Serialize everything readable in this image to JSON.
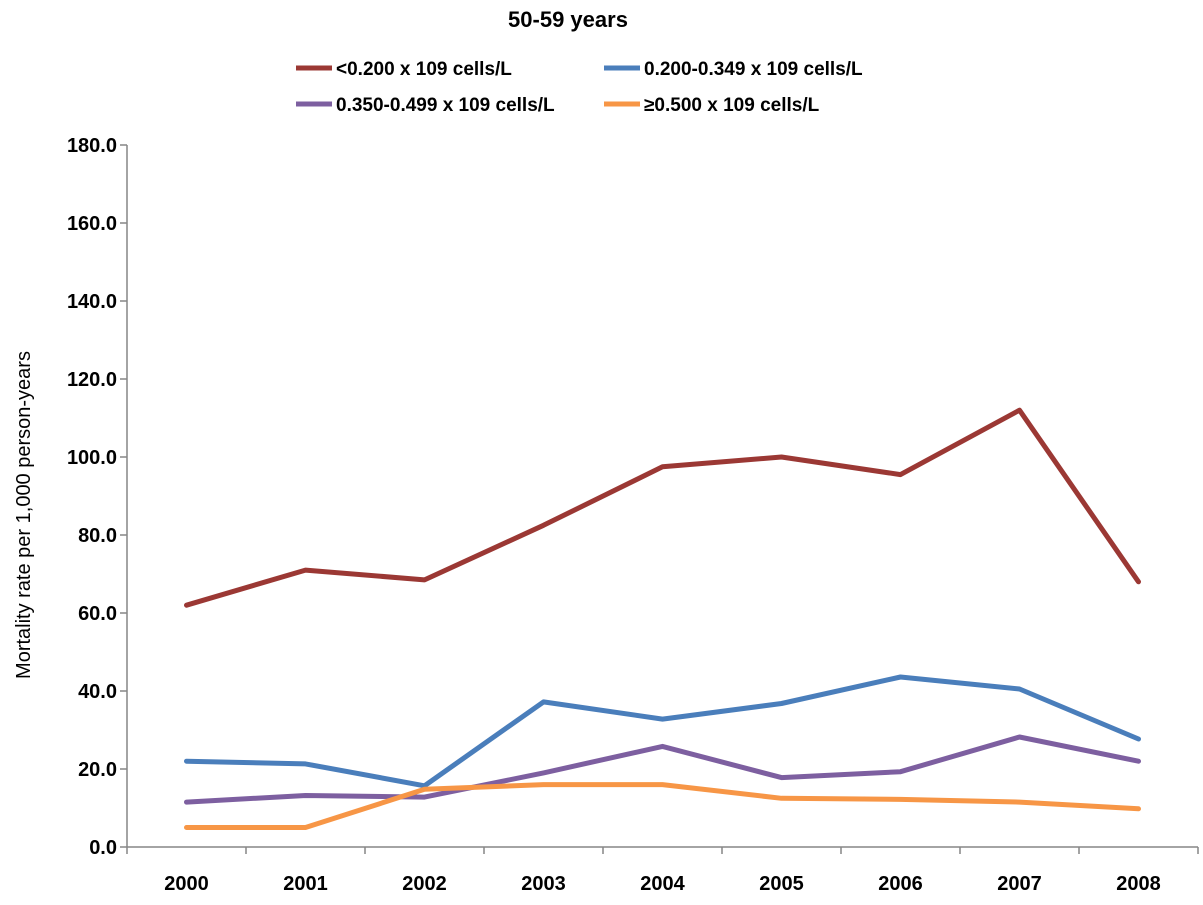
{
  "chart_data": {
    "type": "line",
    "title": "50-59 years",
    "xlabel": "",
    "ylabel": "Mortality rate per 1,000 person-years",
    "categories": [
      "2000",
      "2001",
      "2002",
      "2003",
      "2004",
      "2005",
      "2006",
      "2007",
      "2008"
    ],
    "ylim": [
      0,
      180
    ],
    "yticks": [
      "0.0",
      "20.0",
      "40.0",
      "60.0",
      "80.0",
      "100.0",
      "120.0",
      "140.0",
      "160.0",
      "180.0"
    ],
    "grid": false,
    "legend_position": "top",
    "series": [
      {
        "name": "<0.200 x 109 cells/L",
        "color": "#9B3834",
        "values": [
          62.0,
          71.0,
          68.5,
          82.5,
          97.5,
          100.0,
          95.5,
          112.0,
          68.0
        ]
      },
      {
        "name": "0.200-0.349 x 109 cells/L",
        "color": "#4A7EBB",
        "values": [
          22.0,
          21.3,
          15.7,
          37.2,
          32.8,
          36.8,
          43.6,
          40.5,
          27.7
        ]
      },
      {
        "name": "0.350-0.499 x 109 cells/L",
        "color": "#7D5FA0",
        "values": [
          11.5,
          13.2,
          12.8,
          19.0,
          25.8,
          17.8,
          19.3,
          28.2,
          22.0
        ]
      },
      {
        "name": "≥0.500 x 109 cells/L",
        "color": "#F79646",
        "values": [
          5.0,
          5.0,
          14.8,
          16.0,
          16.0,
          12.5,
          12.2,
          11.5,
          9.8
        ]
      }
    ]
  }
}
